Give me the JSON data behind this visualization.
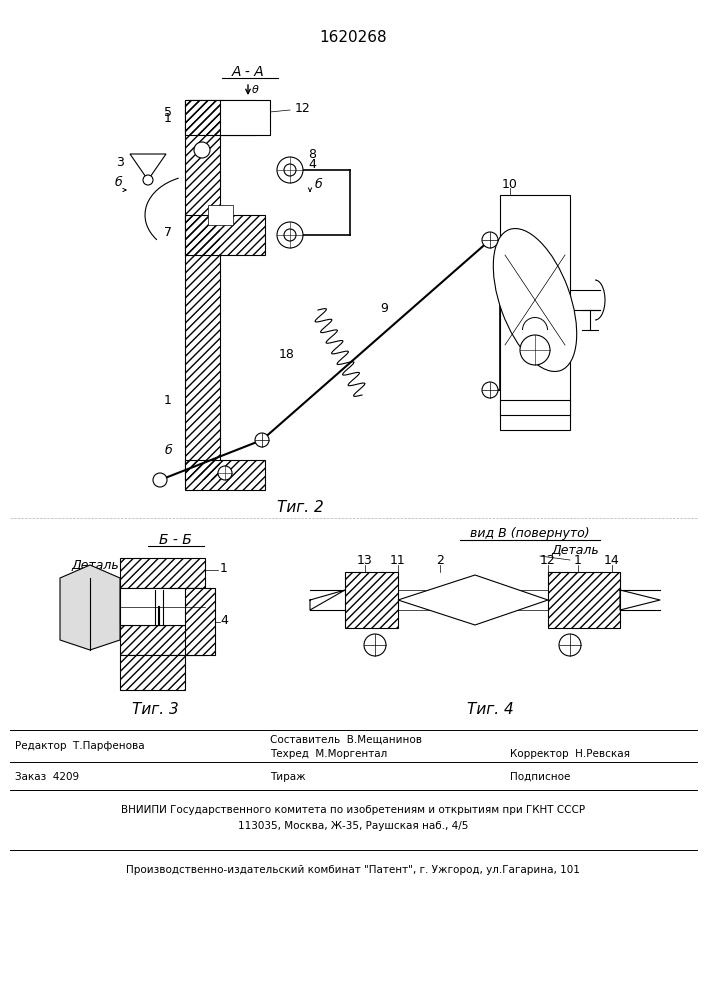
{
  "patent_number": "1620268",
  "fig2_label": "Τиг. 2",
  "fig3_label": "Τиг. 3",
  "fig4_label": "Τиг. 4",
  "section_aa": "А - А",
  "section_bb": "Б - Б",
  "vid_b": "вид В (повернуто)",
  "detal": "Деталь",
  "footer_line1": "Редактор  Т.Парфенова",
  "footer_line2": "Составитель  В.Мещанинов",
  "footer_line3": "Техред  М.Моргентал",
  "footer_line4": "Корректор  Н.Ревская",
  "footer_line5": "Заказ  4209",
  "footer_line6": "Тираж",
  "footer_line7": "Подписное",
  "footer_line8": "ВНИИПИ Государственного комитета по изобретениям и открытиям при ГКНТ СССР",
  "footer_line9": "113035, Москва, Ж-35, Раушская наб., 4/5",
  "footer_line10": "Производственно-издательский комбинат \"Патент\", г. Ужгород, ул.Гагарина, 101",
  "bg_color": "#ffffff"
}
